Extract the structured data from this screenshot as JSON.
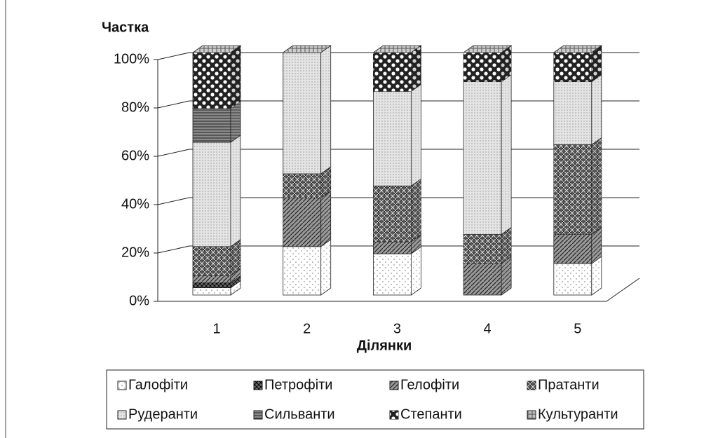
{
  "chart_data": {
    "type": "bar",
    "stacked": true,
    "title": "Частка",
    "x_label": "Ділянки",
    "categories": [
      "1",
      "2",
      "3",
      "4",
      "5"
    ],
    "ylim": [
      0,
      100
    ],
    "yticks": [
      {
        "value": 0,
        "label": "0%"
      },
      {
        "value": 20,
        "label": "20%"
      },
      {
        "value": 40,
        "label": "40%"
      },
      {
        "value": 60,
        "label": "60%"
      },
      {
        "value": 80,
        "label": "80%"
      },
      {
        "value": 100,
        "label": "100%"
      }
    ],
    "grid": true,
    "legend": "bottom",
    "series": [
      {
        "name": "Галофіти",
        "color": "#ffffff",
        "values": [
          3,
          20,
          17,
          0,
          13
        ]
      },
      {
        "name": "Петрофіти",
        "color": "#6a6a6a",
        "values": [
          2,
          0,
          0,
          0,
          0
        ]
      },
      {
        "name": "Гелофіти",
        "color": "#9a9a9a",
        "values": [
          3,
          20,
          5,
          13,
          12
        ]
      },
      {
        "name": "Пратанти",
        "color": "#555555",
        "values": [
          12,
          10,
          23,
          12,
          37
        ]
      },
      {
        "name": "Рудеранти",
        "color": "#e4e4e4",
        "values": [
          43,
          50,
          39,
          63,
          26
        ]
      },
      {
        "name": "Сильванти",
        "color": "#8a8a8a",
        "values": [
          14,
          0,
          0,
          0,
          0
        ]
      },
      {
        "name": "Степанти",
        "color": "#222222",
        "values": [
          23,
          0,
          16,
          12,
          12
        ]
      },
      {
        "name": "Культуранти",
        "color": "#bdbdbd",
        "values": [
          0,
          0,
          0,
          0,
          0
        ]
      }
    ]
  }
}
